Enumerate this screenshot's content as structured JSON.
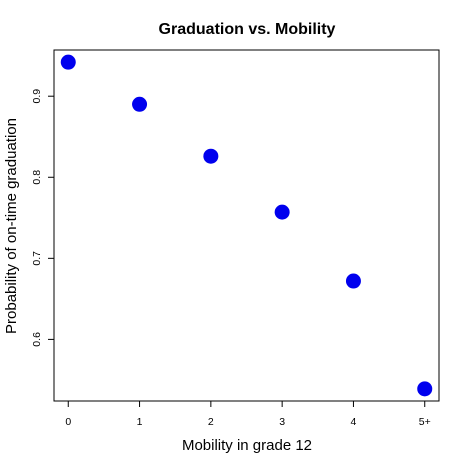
{
  "chart_data": {
    "type": "scatter",
    "title": "Graduation vs. Mobility",
    "xlabel": "Mobility in grade 12",
    "ylabel": "Probability of on-time graduation",
    "x_ticks": [
      {
        "value": 0,
        "label": "0"
      },
      {
        "value": 1,
        "label": "1"
      },
      {
        "value": 2,
        "label": "2"
      },
      {
        "value": 3,
        "label": "3"
      },
      {
        "value": 4,
        "label": "4"
      },
      {
        "value": 5,
        "label": "5+"
      }
    ],
    "y_ticks": [
      {
        "value": 0.6,
        "label": "0.6"
      },
      {
        "value": 0.7,
        "label": "0.7"
      },
      {
        "value": 0.8,
        "label": "0.8"
      },
      {
        "value": 0.9,
        "label": "0.9"
      }
    ],
    "xlim": [
      -0.2,
      5.2
    ],
    "ylim": [
      0.524,
      0.957
    ],
    "grid": false,
    "legend": "none",
    "point_color": "#0000ee",
    "points": [
      {
        "x": 0,
        "y": 0.942
      },
      {
        "x": 1,
        "y": 0.89
      },
      {
        "x": 2,
        "y": 0.826
      },
      {
        "x": 3,
        "y": 0.757
      },
      {
        "x": 4,
        "y": 0.672
      },
      {
        "x": 5,
        "y": 0.539
      }
    ]
  }
}
